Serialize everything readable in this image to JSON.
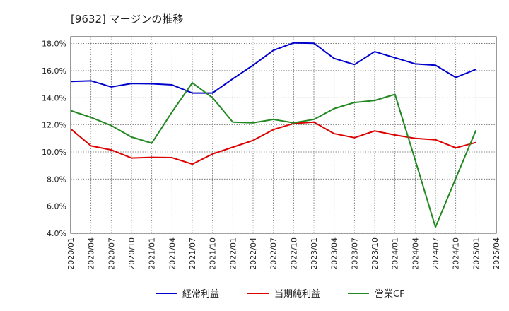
{
  "chart_data": {
    "type": "line",
    "title": "[9632]  マージンの推移",
    "xlabel": "",
    "ylabel": "",
    "ylim": [
      4.0,
      18.5
    ],
    "y_ticks": [
      "4.0%",
      "6.0%",
      "8.0%",
      "10.0%",
      "12.0%",
      "14.0%",
      "16.0%",
      "18.0%"
    ],
    "y_tick_values": [
      4,
      6,
      8,
      10,
      12,
      14,
      16,
      18
    ],
    "grid": true,
    "legend": "bottom",
    "x": [
      "2020/01",
      "2020/04",
      "2020/07",
      "2020/10",
      "2021/01",
      "2021/04",
      "2021/07",
      "2021/10",
      "2022/01",
      "2022/04",
      "2022/07",
      "2022/10",
      "2023/01",
      "2023/04",
      "2023/07",
      "2023/10",
      "2024/01",
      "2024/04",
      "2024/07",
      "2024/10",
      "2025/01",
      "2025/04"
    ],
    "series": [
      {
        "name": "経常利益",
        "color": "#0000cc",
        "values": [
          15.2,
          15.25,
          14.8,
          15.05,
          15.03,
          14.95,
          14.35,
          14.35,
          15.4,
          16.4,
          17.5,
          18.05,
          18.02,
          16.9,
          16.45,
          17.4,
          16.95,
          16.5,
          16.4,
          15.5,
          16.1,
          null
        ]
      },
      {
        "name": "当期純利益",
        "color": "#dd0000",
        "values": [
          11.7,
          10.45,
          10.15,
          9.55,
          9.6,
          9.58,
          9.1,
          9.85,
          10.35,
          10.85,
          11.65,
          12.1,
          12.2,
          11.35,
          11.05,
          11.55,
          11.25,
          11.0,
          10.9,
          10.3,
          10.7,
          null
        ]
      },
      {
        "name": "営業CF",
        "color": "#228822",
        "values": [
          13.05,
          12.55,
          11.95,
          11.1,
          10.65,
          12.95,
          15.1,
          14.0,
          12.2,
          12.15,
          12.4,
          12.15,
          12.4,
          13.2,
          13.65,
          13.8,
          14.25,
          9.4,
          4.45,
          8.05,
          11.6,
          null
        ]
      }
    ]
  }
}
